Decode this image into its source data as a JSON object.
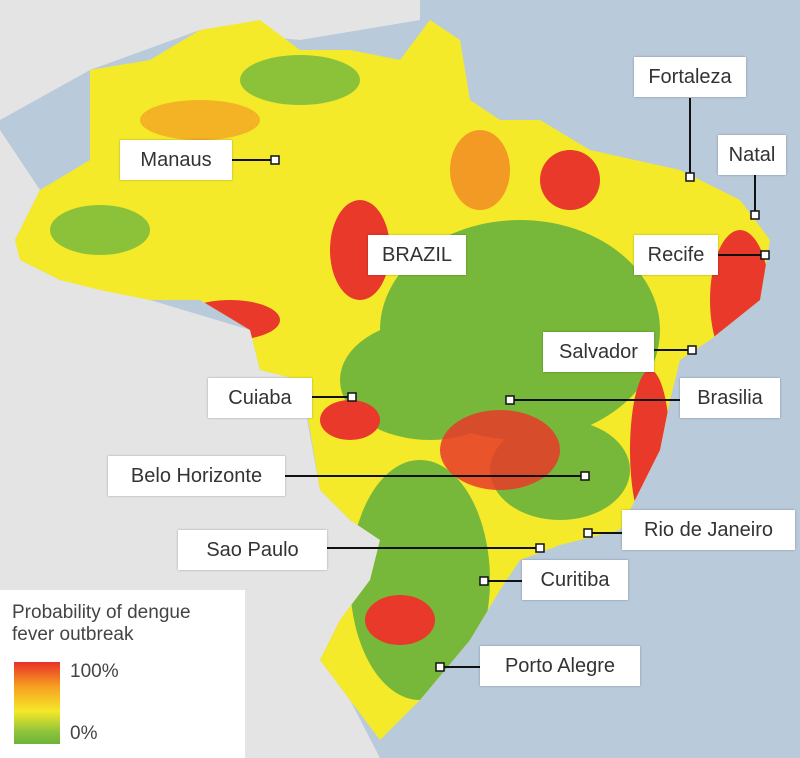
{
  "map": {
    "country": "BRAZIL",
    "cities": [
      {
        "label": "Manaus"
      },
      {
        "label": "Fortaleza"
      },
      {
        "label": "Natal"
      },
      {
        "label": "Recife"
      },
      {
        "label": "Salvador"
      },
      {
        "label": "Cuiaba"
      },
      {
        "label": "Brasilia"
      },
      {
        "label": "Belo Horizonte"
      },
      {
        "label": "Rio de Janeiro"
      },
      {
        "label": "Sao Paulo"
      },
      {
        "label": "Curitiba"
      },
      {
        "label": "Porto Alegre"
      }
    ]
  },
  "legend": {
    "title": "Probability of dengue fever outbreak",
    "max_label": "100%",
    "min_label": "0%"
  }
}
